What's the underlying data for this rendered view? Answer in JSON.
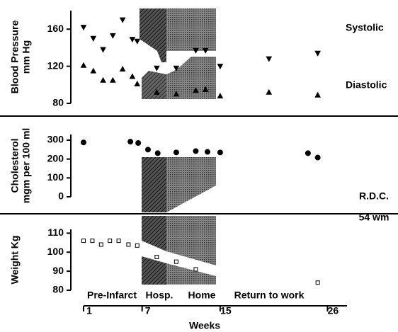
{
  "chart_data": [
    {
      "type": "scatter",
      "ylabel": [
        "Blood Pressure",
        "mm Hg"
      ],
      "ylim": [
        80,
        180
      ],
      "yticks": [
        80,
        120,
        160
      ],
      "xlim": [
        1,
        28
      ],
      "series": [
        {
          "name": "Systolic",
          "marker": "triangle-down",
          "color": "#000000",
          "x": [
            1,
            2,
            3,
            4,
            5,
            6,
            6.5,
            8.5,
            10.5,
            12.5,
            13.5,
            15,
            20,
            25
          ],
          "values": [
            162,
            150,
            138,
            153,
            170,
            149,
            147,
            118,
            118,
            137,
            137,
            120,
            128,
            134
          ]
        },
        {
          "name": "Diastolic",
          "marker": "triangle-up",
          "color": "#000000",
          "x": [
            1,
            2,
            3,
            4,
            5,
            6,
            6.5,
            8.5,
            10.5,
            12.5,
            13.5,
            15,
            20,
            25
          ],
          "values": [
            121,
            115,
            105,
            105,
            117,
            109,
            101,
            92,
            90,
            94,
            95,
            88,
            92,
            89
          ]
        }
      ]
    },
    {
      "type": "scatter",
      "ylabel": [
        "Cholesterol",
        "mgm per 100 ml"
      ],
      "ylim": [
        0,
        330
      ],
      "yticks": [
        0,
        100,
        200,
        300
      ],
      "xlim": [
        1,
        28
      ],
      "annotations": [
        "R.D.C.",
        "54 wm"
      ],
      "series": [
        {
          "name": "Cholesterol",
          "marker": "circle",
          "color": "#000000",
          "x": [
            1,
            5.8,
            6.6,
            7.6,
            8.6,
            10.5,
            12.5,
            13.7,
            15,
            24,
            25
          ],
          "values": [
            288,
            292,
            285,
            250,
            231,
            235,
            242,
            238,
            235,
            231,
            208
          ]
        }
      ]
    },
    {
      "type": "scatter",
      "ylabel": [
        "Weight Kg"
      ],
      "ylim": [
        80,
        112
      ],
      "yticks": [
        80,
        90,
        100,
        110
      ],
      "xlim": [
        1,
        28
      ],
      "xticks": [
        1,
        7,
        15,
        26
      ],
      "xlabel": "Weeks",
      "annotations": [
        "Pre-Infarct",
        "Hosp.",
        "Home",
        "Return to work"
      ],
      "series": [
        {
          "name": "Weight",
          "marker": "square",
          "color": "#000000",
          "x": [
            1,
            1.9,
            2.8,
            3.7,
            4.6,
            5.6,
            6.5,
            8.5,
            10.5,
            12.5,
            25
          ],
          "values": [
            106,
            106,
            104,
            106,
            106,
            104,
            103.5,
            97.5,
            95,
            91,
            84
          ]
        }
      ]
    }
  ]
}
